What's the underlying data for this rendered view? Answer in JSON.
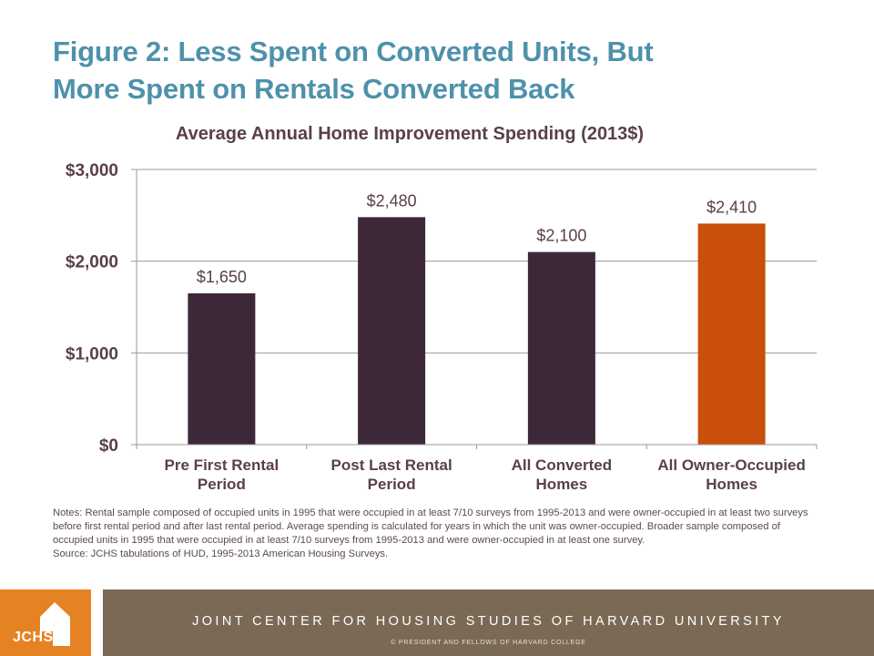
{
  "title": {
    "line1": "Figure 2: Less Spent on Converted Units, But",
    "line2": "More Spent on Rentals Converted Back"
  },
  "chart_data": {
    "type": "bar",
    "title": "Average Annual Home Improvement Spending (2013$)",
    "xlabel": "",
    "ylabel": "",
    "categories": [
      [
        "Pre First Rental",
        "Period"
      ],
      [
        "Post Last Rental",
        "Period"
      ],
      [
        "All Converted",
        "Homes"
      ],
      [
        "All Owner-Occupied",
        "Homes"
      ]
    ],
    "values": [
      1650,
      2480,
      2100,
      2410
    ],
    "data_labels": [
      "$1,650",
      "$2,480",
      "$2,100",
      "$2,410"
    ],
    "bar_colors": [
      "#3d2839",
      "#3d2839",
      "#3d2839",
      "#c94f0a"
    ],
    "ylim": [
      0,
      3000
    ],
    "yticks": [
      0,
      1000,
      2000,
      3000
    ],
    "ytick_labels": [
      "$0",
      "$1,000",
      "$2,000",
      "$3,000"
    ],
    "grid": true,
    "legend": "none"
  },
  "notes": {
    "text": "Notes: Rental sample composed of occupied units in 1995 that were occupied in at least 7/10 surveys from 1995-2013 and were owner-occupied in at least two surveys before first rental period and after last rental period. Average spending is calculated for years in which the unit was owner-occupied. Broader sample composed of occupied units in 1995 that were occupied in at least 7/10 surveys from 1995-2013 and were owner-occupied in at least one survey.",
    "source": "Source: JCHS tabulations of HUD, 1995-2013 American Housing Surveys."
  },
  "footer": {
    "logo_text": "JCHS",
    "main": "JOINT CENTER FOR HOUSING STUDIES OF HARVARD UNIVERSITY",
    "sub": "© PRESIDENT AND FELLOWS OF HARVARD COLLEGE"
  },
  "colors": {
    "title": "#4e91ab",
    "axis_text": "#5a4048",
    "bar_primary": "#3d2839",
    "bar_highlight": "#c94f0a",
    "logo_bg": "#e58223",
    "footer_bg": "#7a6a55"
  }
}
